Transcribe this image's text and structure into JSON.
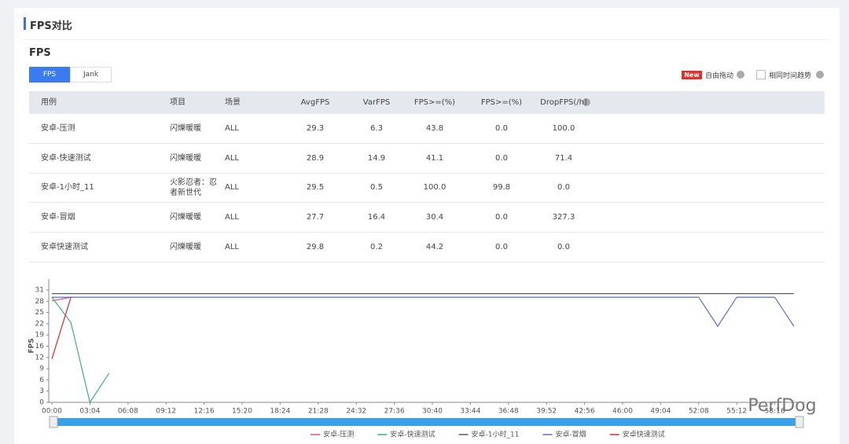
{
  "section_title": "FPS对比",
  "panel_title": "FPS",
  "tabs": [
    "FPS",
    "Jank"
  ],
  "options": {
    "badge": "New",
    "drag": "自由拖动",
    "same_time": "相同时间趋势"
  },
  "table": {
    "headers": [
      "用例",
      "项目",
      "场景",
      "AvgFPS",
      "VarFPS",
      "FPS>=(%)",
      "FPS>=(%)",
      "DropFPS(/h)"
    ],
    "rows": [
      [
        "安卓-压测",
        "闪爍暖暖",
        "ALL",
        "29.3",
        "6.3",
        "43.8",
        "0.0",
        "100.0"
      ],
      [
        "安卓-快速测试",
        "闪爍暖暖",
        "ALL",
        "28.9",
        "14.9",
        "41.1",
        "0.0",
        "71.4"
      ],
      [
        "安卓-1小时_11",
        "火影忍者：忍者新世代",
        "ALL",
        "29.5",
        "0.5",
        "100.0",
        "99.8",
        "0.0"
      ],
      [
        "安卓-冒烟",
        "闪爍暖暖",
        "ALL",
        "27.7",
        "16.4",
        "30.4",
        "0.0",
        "327.3"
      ],
      [
        "安卓快速测试",
        "闪爍暖暖",
        "ALL",
        "29.8",
        "0.2",
        "44.2",
        "0.0",
        "0.0"
      ]
    ]
  },
  "chart_data": {
    "type": "line",
    "y_label": "FPS",
    "categories": [
      "00:00",
      null,
      "03:04",
      null,
      "06:08",
      null,
      "09:12",
      null,
      "12:16",
      null,
      "15:20",
      null,
      "18:24",
      null,
      "21:28",
      null,
      "24:32",
      null,
      "27:36",
      null,
      "30:40",
      null,
      "33:44",
      null,
      "36:48",
      null,
      "39:52",
      null,
      "42:56",
      null,
      "46:00",
      null,
      "49:04",
      null,
      "52:08",
      null,
      "55:12",
      null,
      "58:16",
      null
    ],
    "ylim": [
      0,
      31
    ],
    "yticks": [
      0,
      {
        "value": 3.1,
        "label": "3"
      },
      {
        "value": 6.2,
        "label": "6"
      },
      {
        "value": 9.3,
        "label": "9"
      },
      {
        "value": 12.4,
        "label": "12"
      },
      {
        "value": 15.5,
        "label": "16"
      },
      {
        "value": 18.6,
        "label": "19"
      },
      {
        "value": 21.7,
        "label": "22"
      },
      {
        "value": 24.8,
        "label": "25"
      },
      {
        "value": 27.9,
        "label": "28"
      },
      31
    ],
    "series": [
      {
        "name": "安卓-压测",
        "color": "#e0508a",
        "values": [
          28,
          29,
          null,
          null,
          null,
          null,
          null,
          null,
          null,
          null,
          null,
          null,
          null,
          null,
          null,
          null,
          null,
          null,
          null,
          null,
          null,
          null,
          null,
          null,
          null,
          null,
          null,
          null,
          null,
          null,
          null,
          null,
          null,
          null,
          null,
          null,
          null,
          null,
          null,
          null
        ]
      },
      {
        "name": "安卓-快速测试",
        "color": "#3fae84",
        "values": [
          29,
          22,
          0,
          8,
          null,
          null,
          null,
          null,
          null,
          null,
          null,
          null,
          null,
          null,
          null,
          null,
          null,
          null,
          null,
          null,
          null,
          null,
          null,
          null,
          null,
          null,
          null,
          null,
          null,
          null,
          null,
          null,
          null,
          null,
          null,
          null,
          null,
          null,
          null,
          null
        ]
      },
      {
        "name": "安卓-1小时_11",
        "color": "#555a66",
        "values": [
          30,
          30,
          30,
          30,
          30,
          30,
          30,
          30,
          30,
          30,
          30,
          30,
          30,
          30,
          30,
          30,
          30,
          30,
          30,
          30,
          30,
          30,
          30,
          30,
          30,
          30,
          30,
          30,
          30,
          30,
          30,
          30,
          30,
          30,
          30,
          30,
          30,
          30,
          30,
          30
        ]
      },
      {
        "name": "安卓-冒烟",
        "color": "#5b6fd6",
        "values": [
          29,
          29,
          29,
          29,
          29,
          29,
          29,
          29,
          29,
          29,
          29,
          29,
          29,
          29,
          29,
          29,
          29,
          29,
          29,
          29,
          29,
          29,
          29,
          29,
          29,
          29,
          29,
          29,
          29,
          29,
          29,
          29,
          29,
          29,
          29,
          21,
          29,
          29,
          29,
          21
        ]
      },
      {
        "name": "安卓快速测试",
        "color": "#d62c2c",
        "values": [
          12,
          29,
          null,
          null,
          null,
          null,
          null,
          null,
          null,
          null,
          null,
          null,
          null,
          null,
          null,
          null,
          null,
          null,
          null,
          null,
          null,
          null,
          null,
          null,
          null,
          null,
          null,
          null,
          null,
          null,
          null,
          null,
          null,
          null,
          null,
          null,
          null,
          null,
          null,
          null
        ]
      }
    ]
  },
  "watermark": "PerfDog"
}
